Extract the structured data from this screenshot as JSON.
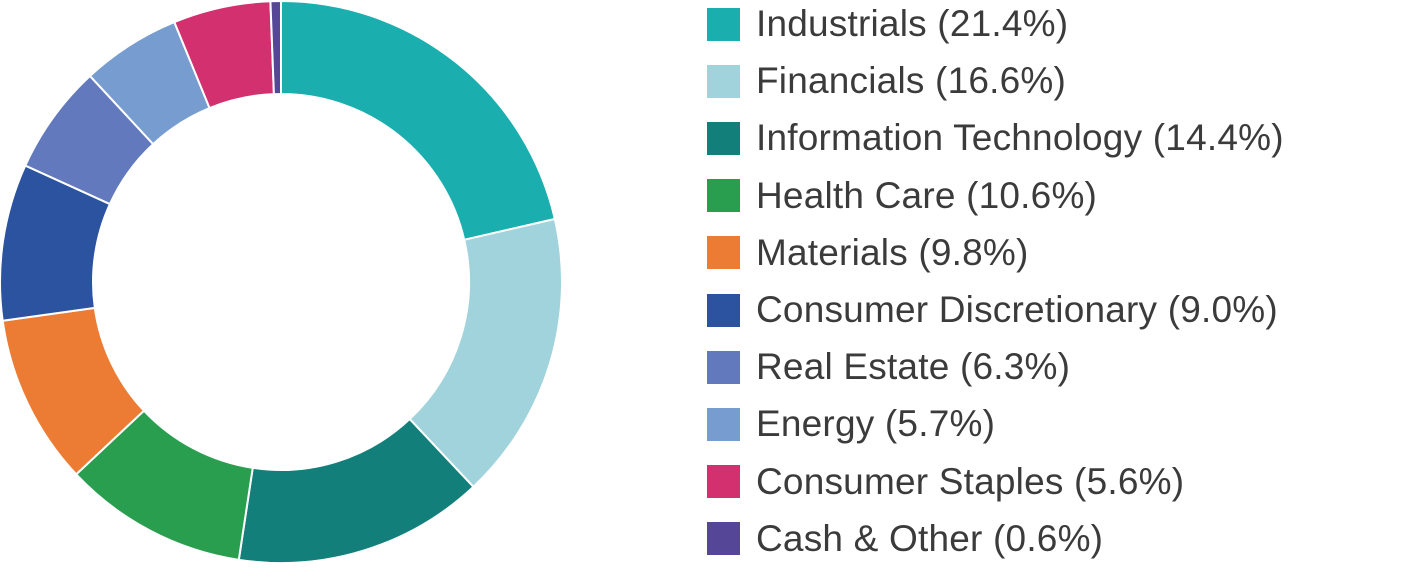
{
  "chart_data": {
    "type": "pie",
    "donut": true,
    "categories": [
      "Industrials",
      "Financials",
      "Information Technology",
      "Health Care",
      "Materials",
      "Consumer Discretionary",
      "Real Estate",
      "Energy",
      "Consumer Staples",
      "Cash & Other"
    ],
    "values": [
      21.4,
      16.6,
      14.4,
      10.6,
      9.8,
      9.0,
      6.3,
      5.7,
      5.6,
      0.6
    ],
    "colors": [
      "#1aaeae",
      "#a1d3dc",
      "#127f7a",
      "#2a9e4f",
      "#ec7c33",
      "#2b53a0",
      "#6279bd",
      "#779ccf",
      "#d3306f",
      "#564698"
    ],
    "legend_labels": [
      "Industrials (21.4%)",
      "Financials (16.6%)",
      "Information Technology (14.4%)",
      "Health Care (10.6%)",
      "Materials (9.8%)",
      "Consumer Discretionary (9.0%)",
      "Real Estate (6.3%)",
      "Energy (5.7%)",
      "Consumer Staples (5.6%)",
      "Cash & Other (0.6%)"
    ],
    "legend_position": "right",
    "start": "top, clockwise"
  }
}
